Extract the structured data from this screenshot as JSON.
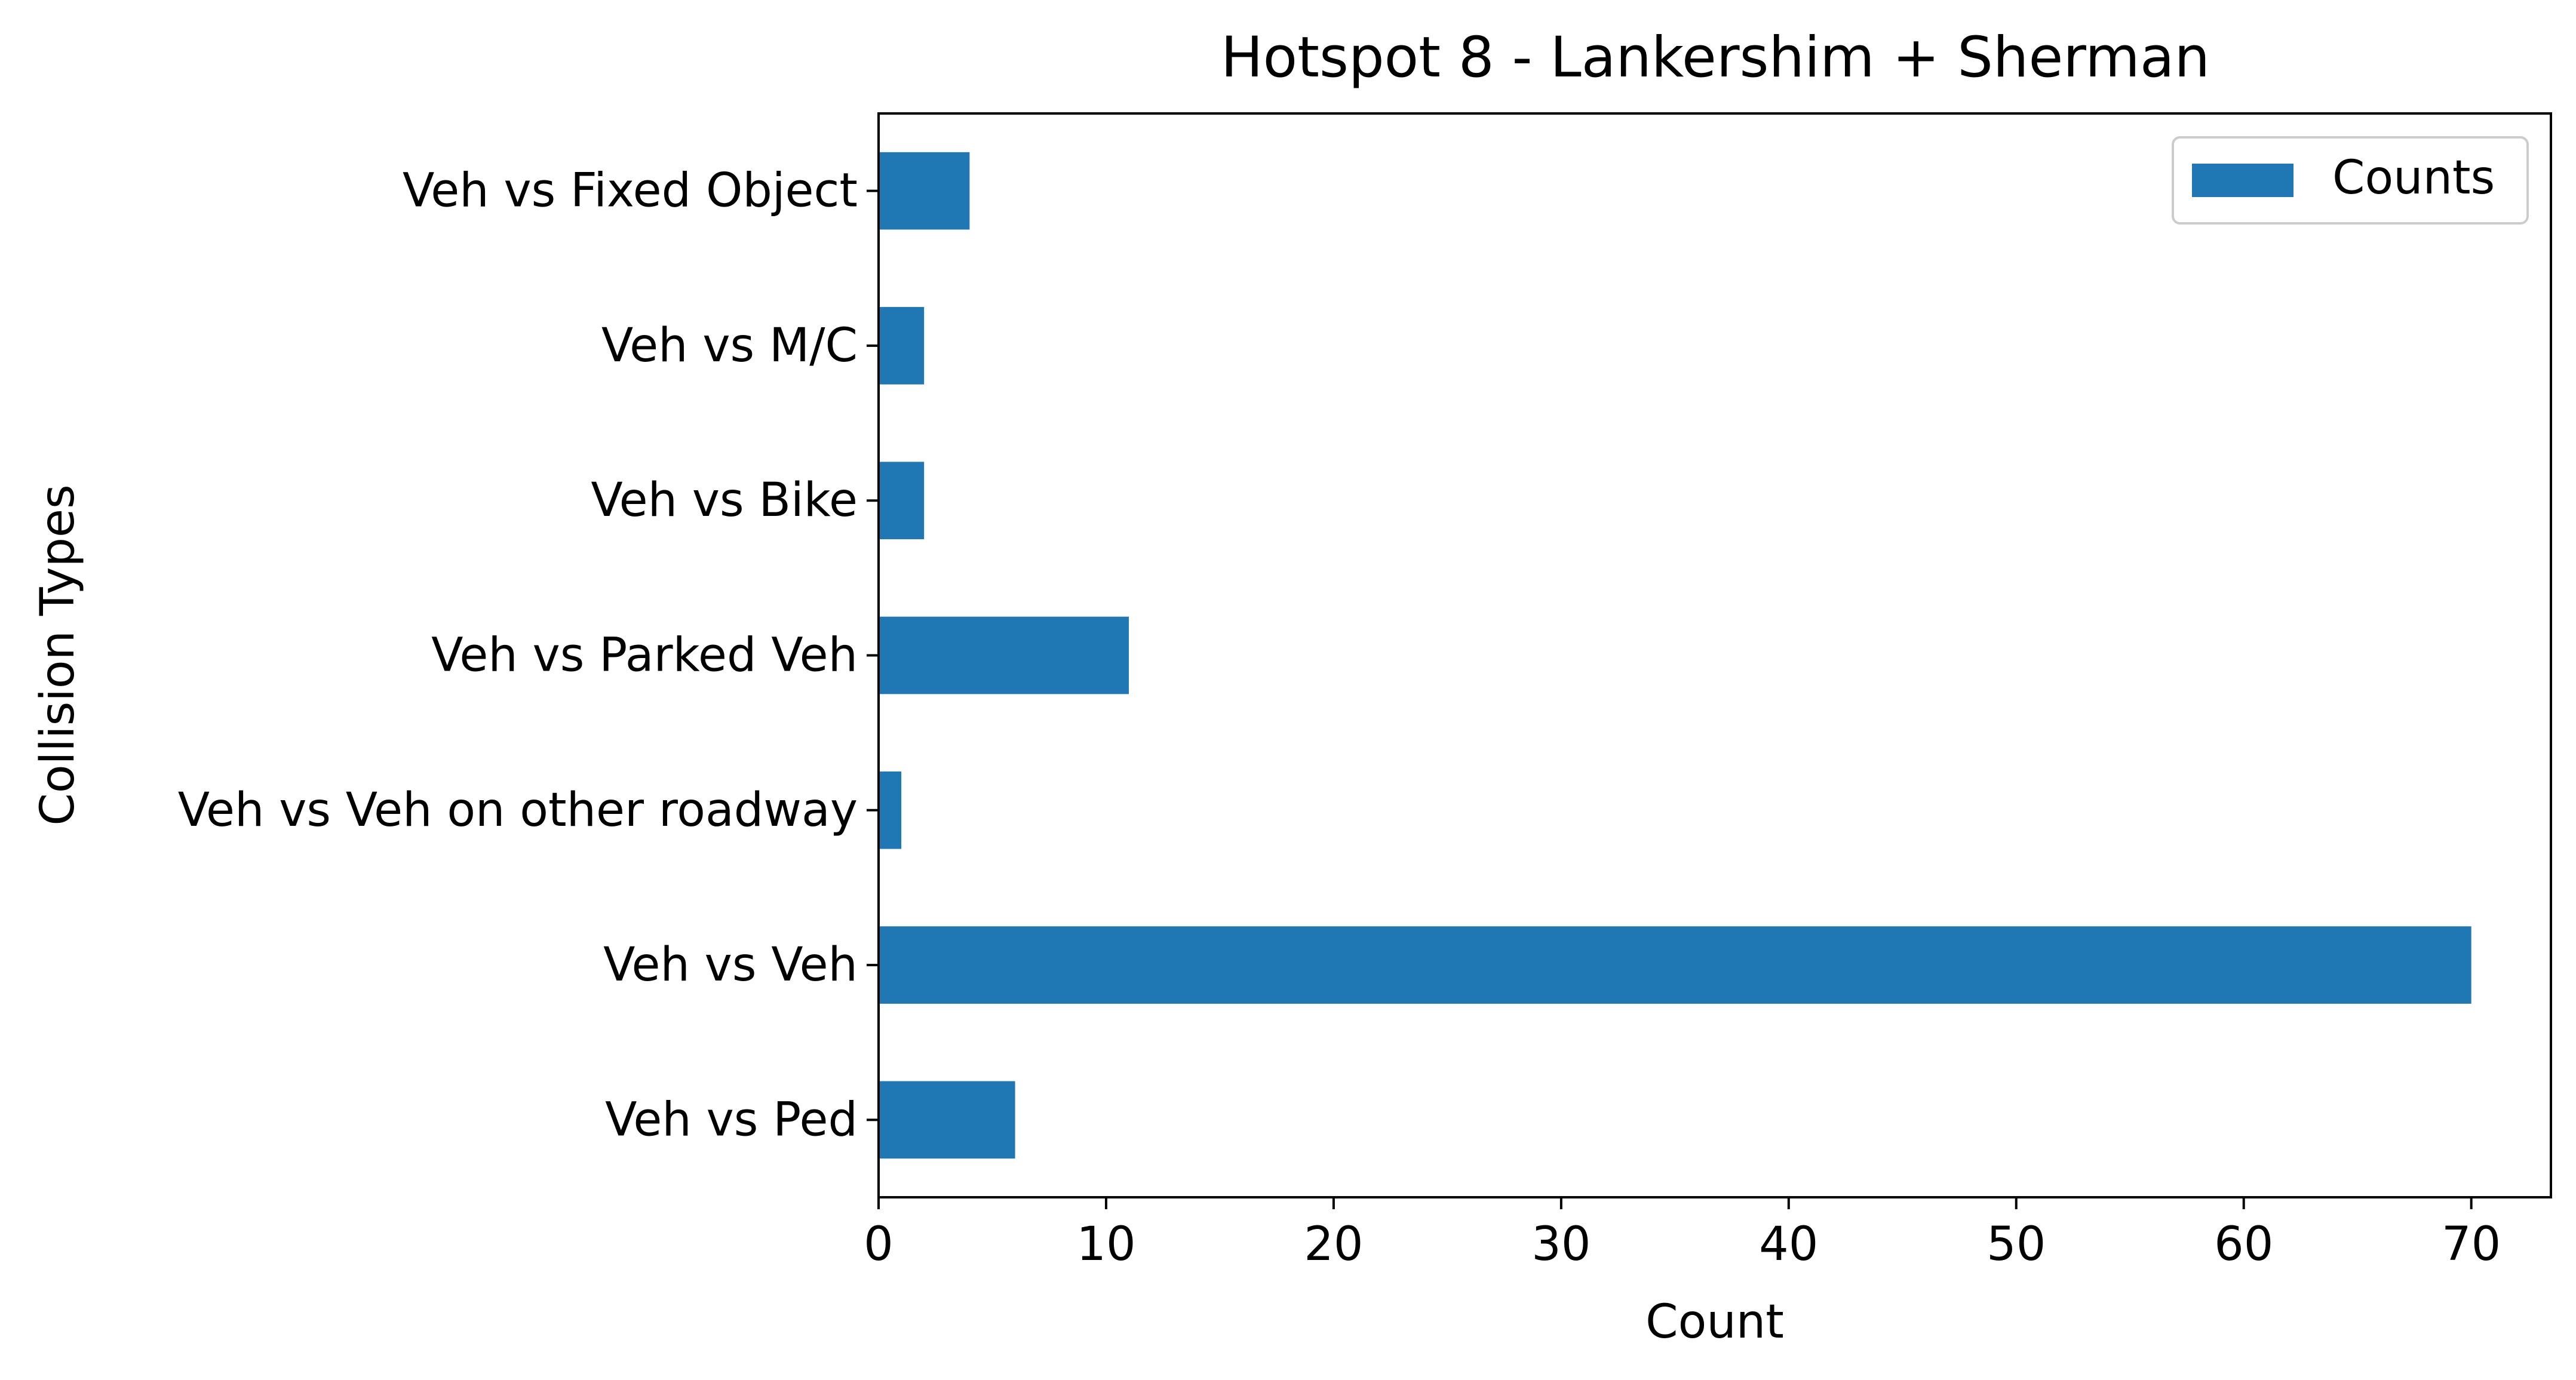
{
  "chart_data": {
    "type": "bar",
    "orientation": "horizontal",
    "title": "Hotspot 8 - Lankershim + Sherman",
    "xlabel": "Count",
    "ylabel": "Collision Types",
    "categories": [
      "Veh vs Ped",
      "Veh vs Veh",
      "Veh vs Veh on other roadway",
      "Veh vs Parked Veh",
      "Veh vs Bike",
      "Veh vs M/C",
      "Veh vs Fixed Object"
    ],
    "series": [
      {
        "name": "Counts",
        "values": [
          6,
          70,
          1,
          11,
          2,
          2,
          4
        ],
        "color": "#1f77b4"
      }
    ],
    "xlim": [
      0,
      73.5
    ],
    "xticks": [
      0,
      10,
      20,
      30,
      40,
      50,
      60,
      70
    ],
    "grid": false,
    "legend_position": "top-right"
  }
}
